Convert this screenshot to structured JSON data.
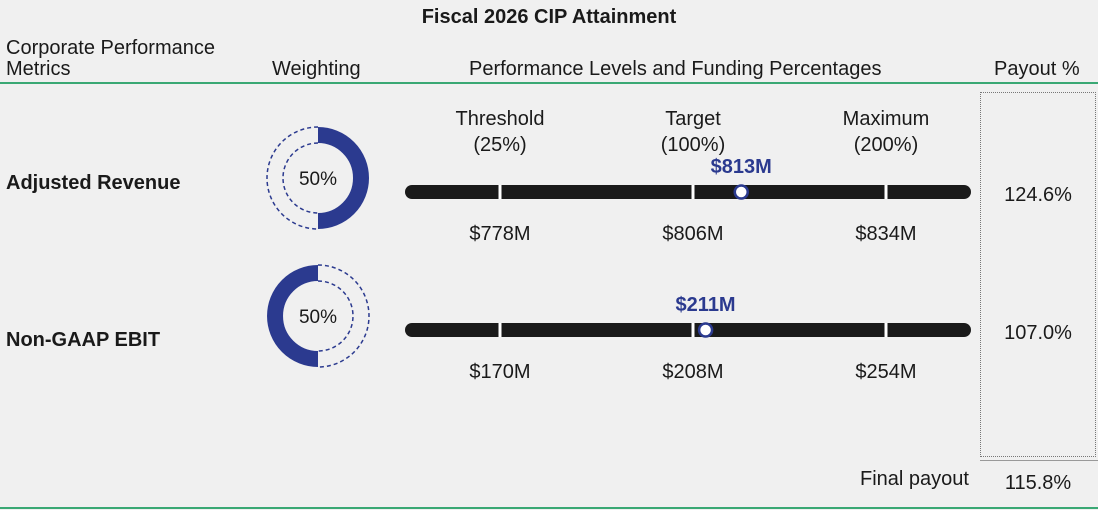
{
  "title": "Fiscal 2026 CIP Attainment",
  "headers": {
    "metric": "Corporate Performance Metrics",
    "weighting": "Weighting",
    "performance": "Performance Levels and Funding Percentages",
    "payout": "Payout %"
  },
  "colors": {
    "accent": "#2b3a8f",
    "bar": "#1a1a1a",
    "rule": "#3aa874"
  },
  "levels": [
    {
      "name": "Threshold",
      "funding": "(25%)"
    },
    {
      "name": "Target",
      "funding": "(100%)"
    },
    {
      "name": "Maximum",
      "funding": "(200%)"
    }
  ],
  "chart_data": [
    {
      "type": "bullet",
      "metric": "Adjusted Revenue",
      "weighting": 0.5,
      "weighting_label": "50%",
      "levels": [
        {
          "value": 778,
          "label": "$778M"
        },
        {
          "value": 806,
          "label": "$806M"
        },
        {
          "value": 834,
          "label": "$834M"
        }
      ],
      "actual": 813,
      "actual_label": "$813M",
      "payout": "124.6%"
    },
    {
      "type": "bullet",
      "metric": "Non-GAAP EBIT",
      "weighting": 0.5,
      "weighting_label": "50%",
      "levels": [
        {
          "value": 170,
          "label": "$170M"
        },
        {
          "value": 208,
          "label": "$208M"
        },
        {
          "value": 254,
          "label": "$254M"
        }
      ],
      "actual": 211,
      "actual_label": "$211M",
      "payout": "107.0%"
    }
  ],
  "final": {
    "label": "Final payout",
    "value": "115.8%"
  }
}
